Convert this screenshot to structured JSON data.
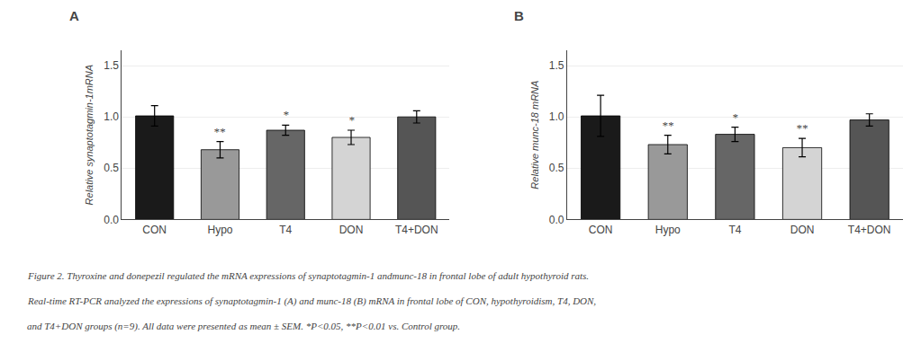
{
  "chart_data": [
    {
      "type": "bar",
      "title": "A",
      "categories": [
        "CON",
        "Hypo",
        "T4",
        "DON",
        "T4+DON"
      ],
      "values": [
        1.01,
        0.68,
        0.87,
        0.8,
        1.0
      ],
      "errors": [
        0.1,
        0.08,
        0.05,
        0.07,
        0.06
      ],
      "colors": [
        "#1a1a1a",
        "#999999",
        "#666666",
        "#d4d4d4",
        "#555555"
      ],
      "annotations": [
        {
          "x": "Hypo",
          "text": "**"
        },
        {
          "x": "T4",
          "text": "*"
        },
        {
          "x": "DON",
          "text": "*"
        }
      ],
      "ylabel": "Relative synaptotagmin-1mRNA",
      "ylim": [
        0,
        1.65
      ],
      "yticks": [
        {
          "value": 0.0,
          "label": "0.0"
        },
        0.5,
        {
          "value": 1.0,
          "label": "1.0"
        },
        1.5
      ]
    },
    {
      "type": "bar",
      "title": "B",
      "categories": [
        "CON",
        "Hypo",
        "T4",
        "DON",
        "T4+DON"
      ],
      "values": [
        1.01,
        0.73,
        0.83,
        0.7,
        0.97
      ],
      "errors": [
        0.2,
        0.09,
        0.07,
        0.09,
        0.06
      ],
      "colors": [
        "#1a1a1a",
        "#999999",
        "#666666",
        "#d4d4d4",
        "#555555"
      ],
      "annotations": [
        {
          "x": "Hypo",
          "text": "**"
        },
        {
          "x": "T4",
          "text": "*"
        },
        {
          "x": "DON",
          "text": "**"
        }
      ],
      "ylabel": "Relative munc-18 mRNA",
      "ylim": [
        0,
        1.65
      ],
      "yticks": [
        {
          "value": 0.0,
          "label": "0.0"
        },
        0.5,
        {
          "value": 1.0,
          "label": "1.0"
        },
        1.5
      ]
    }
  ],
  "caption": [
    "Figure 2. Thyroxine and donepezil regulated the mRNA expressions of synaptotagmin-1 andmunc-18 in frontal lobe of adult hypothyroid rats.",
    "Real-time RT-PCR analyzed the expressions of synaptotagmin-1 (A) and munc-18 (B) mRNA in frontal lobe of CON, hypothyroidism, T4, DON,",
    "and T4+DON groups (n=9). All data were presented as mean ± SEM. *P<0.05, **P<0.01 vs. Control group."
  ]
}
